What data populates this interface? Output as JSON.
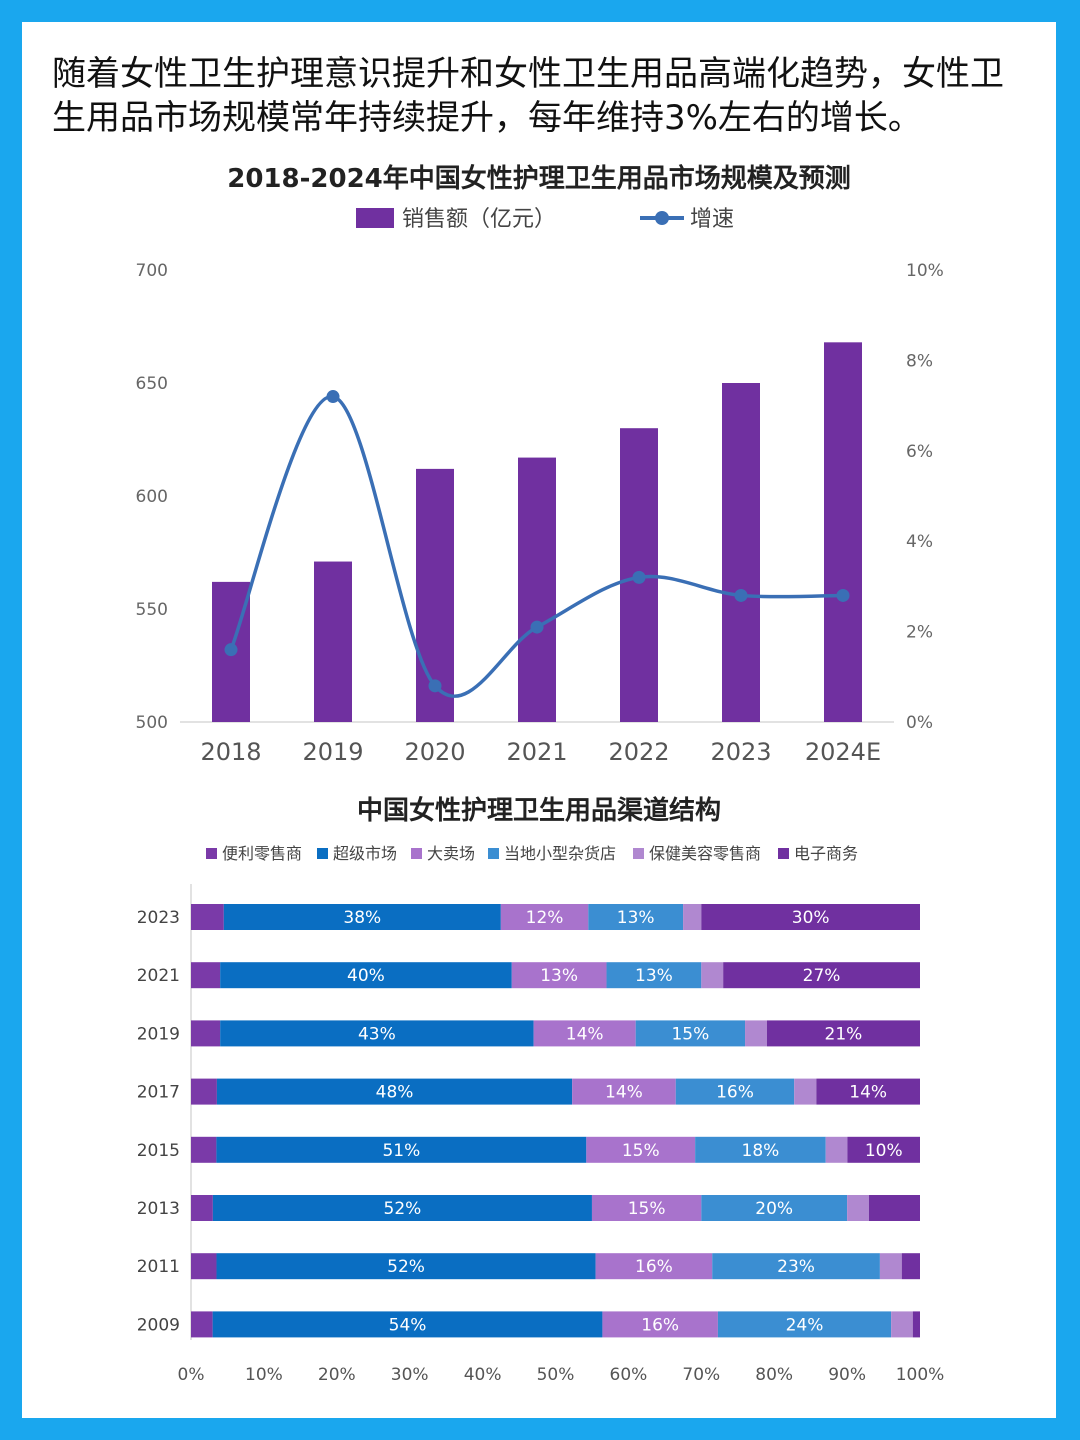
{
  "intro_text": "随着女性卫生护理意识提升和女性卫生用品高端化趋势，女性卫生用品市场规模常年持续提升，每年维持3%左右的增长。",
  "chart_data": [
    {
      "type": "bar",
      "title": "2018-2024年中国女性护理卫生用品市场规模及预测",
      "categories": [
        "2018",
        "2019",
        "2020",
        "2021",
        "2022",
        "2023",
        "2024E"
      ],
      "series": [
        {
          "name": "销售额（亿元）",
          "type": "bar",
          "axis": "left",
          "values": [
            562,
            571,
            612,
            617,
            630,
            650,
            668
          ]
        },
        {
          "name": "增速",
          "type": "line",
          "axis": "right",
          "unit": "%",
          "values": [
            1.6,
            7.2,
            0.8,
            2.1,
            3.2,
            2.8,
            2.8
          ]
        }
      ],
      "ylim_left": [
        500,
        700
      ],
      "yticks_left": [
        "500",
        "550",
        "600",
        "650",
        "700"
      ],
      "ylim_right": [
        0,
        10
      ],
      "yticks_right": [
        "0%",
        "2%",
        "4%",
        "6%",
        "8%",
        "10%"
      ],
      "legend_position": "top",
      "grid": false,
      "colors": {
        "bar": "#7030a0",
        "line": "#3a6fb5"
      }
    },
    {
      "type": "bar",
      "orientation": "horizontal",
      "stacked": true,
      "title": "中国女性护理卫生用品渠道结构",
      "categories": [
        "2023",
        "2021",
        "2019",
        "2017",
        "2015",
        "2013",
        "2011",
        "2009"
      ],
      "series": [
        {
          "name": "便利零售商",
          "color": "#7a3aa8",
          "values": [
            4.5,
            4,
            4,
            3.5,
            3.5,
            3,
            3.5,
            3
          ]
        },
        {
          "name": "超级市场",
          "color": "#0a6ec2",
          "values": [
            38,
            40,
            43,
            48,
            51,
            52,
            52,
            54
          ]
        },
        {
          "name": "大卖场",
          "color": "#a873cc",
          "values": [
            12,
            13,
            14,
            14,
            15,
            15,
            16,
            16
          ]
        },
        {
          "name": "当地小型杂货店",
          "color": "#3b8ed2",
          "values": [
            13,
            13,
            15,
            16,
            18,
            20,
            23,
            24
          ]
        },
        {
          "name": "保健美容零售商",
          "color": "#b088d0",
          "values": [
            2.5,
            3,
            3,
            3,
            3,
            3,
            3,
            3
          ]
        },
        {
          "name": "电子商务",
          "color": "#7030a0",
          "values": [
            30,
            27,
            21,
            14,
            10,
            7,
            2.5,
            1
          ]
        }
      ],
      "data_labels": [
        [
          "",
          "38%",
          "12%",
          "13%",
          "",
          "30%"
        ],
        [
          "",
          "40%",
          "13%",
          "13%",
          "",
          "27%"
        ],
        [
          "",
          "43%",
          "14%",
          "15%",
          "",
          "21%"
        ],
        [
          "",
          "48%",
          "14%",
          "16%",
          "",
          "14%"
        ],
        [
          "",
          "51%",
          "15%",
          "18%",
          "",
          "10%"
        ],
        [
          "",
          "52%",
          "15%",
          "20%",
          "",
          ""
        ],
        [
          "",
          "52%",
          "16%",
          "23%",
          "",
          ""
        ],
        [
          "",
          "54%",
          "16%",
          "24%",
          "",
          ""
        ]
      ],
      "xlim": [
        0,
        100
      ],
      "xticks": [
        "0%",
        "10%",
        "20%",
        "30%",
        "40%",
        "50%",
        "60%",
        "70%",
        "80%",
        "90%",
        "100%"
      ],
      "legend_position": "top",
      "grid": false
    }
  ]
}
